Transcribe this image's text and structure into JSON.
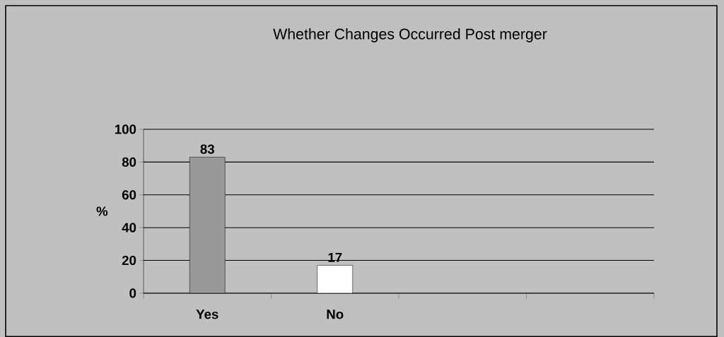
{
  "chart_data": {
    "type": "bar",
    "title": "Whether Changes Occurred Post merger",
    "ylabel": "%",
    "categories": [
      "Yes",
      "No",
      null,
      null
    ],
    "values": [
      83,
      17,
      null,
      null
    ],
    "colors": [
      "#999999",
      "#ffffff",
      null,
      null
    ],
    "ylim": [
      0,
      100
    ],
    "yticks": [
      0,
      20,
      40,
      60,
      80,
      100
    ],
    "grid": "y",
    "data_labels": true
  }
}
